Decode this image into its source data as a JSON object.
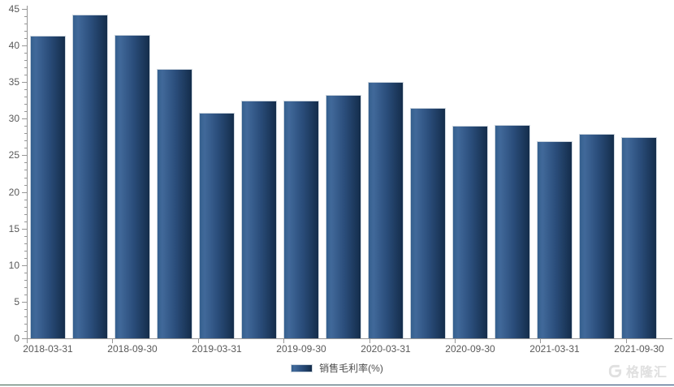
{
  "legend": {
    "label": "销售毛利率(%)"
  },
  "watermark": {
    "text": "格隆汇"
  },
  "colors": {
    "bar_edge": "#35608e",
    "bar_light": "#41699a",
    "bar_mid": "#2b4e7c",
    "bar_dark": "#142d4b",
    "bar_border": "#ccd5de",
    "axis": "#979797",
    "tick_label": "#595959",
    "legend_text": "#4d4d4d",
    "watermark": "#e0e0e0",
    "divider_left": "#3c604d",
    "divider_right": "#1f4270"
  },
  "chart_data": {
    "type": "bar",
    "title": "",
    "xlabel": "",
    "ylabel": "",
    "series_name": "销售毛利率(%)",
    "categories": [
      "2018-03-31",
      "2018-06-30",
      "2018-09-30",
      "2018-12-31",
      "2019-03-31",
      "2019-06-30",
      "2019-09-30",
      "2019-12-31",
      "2020-03-31",
      "2020-06-30",
      "2020-09-30",
      "2020-12-31",
      "2021-03-31",
      "2021-06-30",
      "2021-09-30"
    ],
    "values": [
      41.3,
      44.2,
      41.5,
      36.8,
      30.8,
      32.5,
      32.5,
      33.3,
      35.0,
      31.5,
      29.0,
      29.2,
      26.9,
      27.9,
      27.5
    ],
    "x_tick_labels": [
      "2018-03-31",
      "2018-09-30",
      "2019-03-31",
      "2019-09-30",
      "2020-03-31",
      "2020-09-30",
      "2021-03-31",
      "2021-09-30"
    ],
    "ylim": [
      0,
      45
    ],
    "y_major_step": 5,
    "y_minor_step": 1,
    "grid": false,
    "legend_position": "bottom-center"
  }
}
